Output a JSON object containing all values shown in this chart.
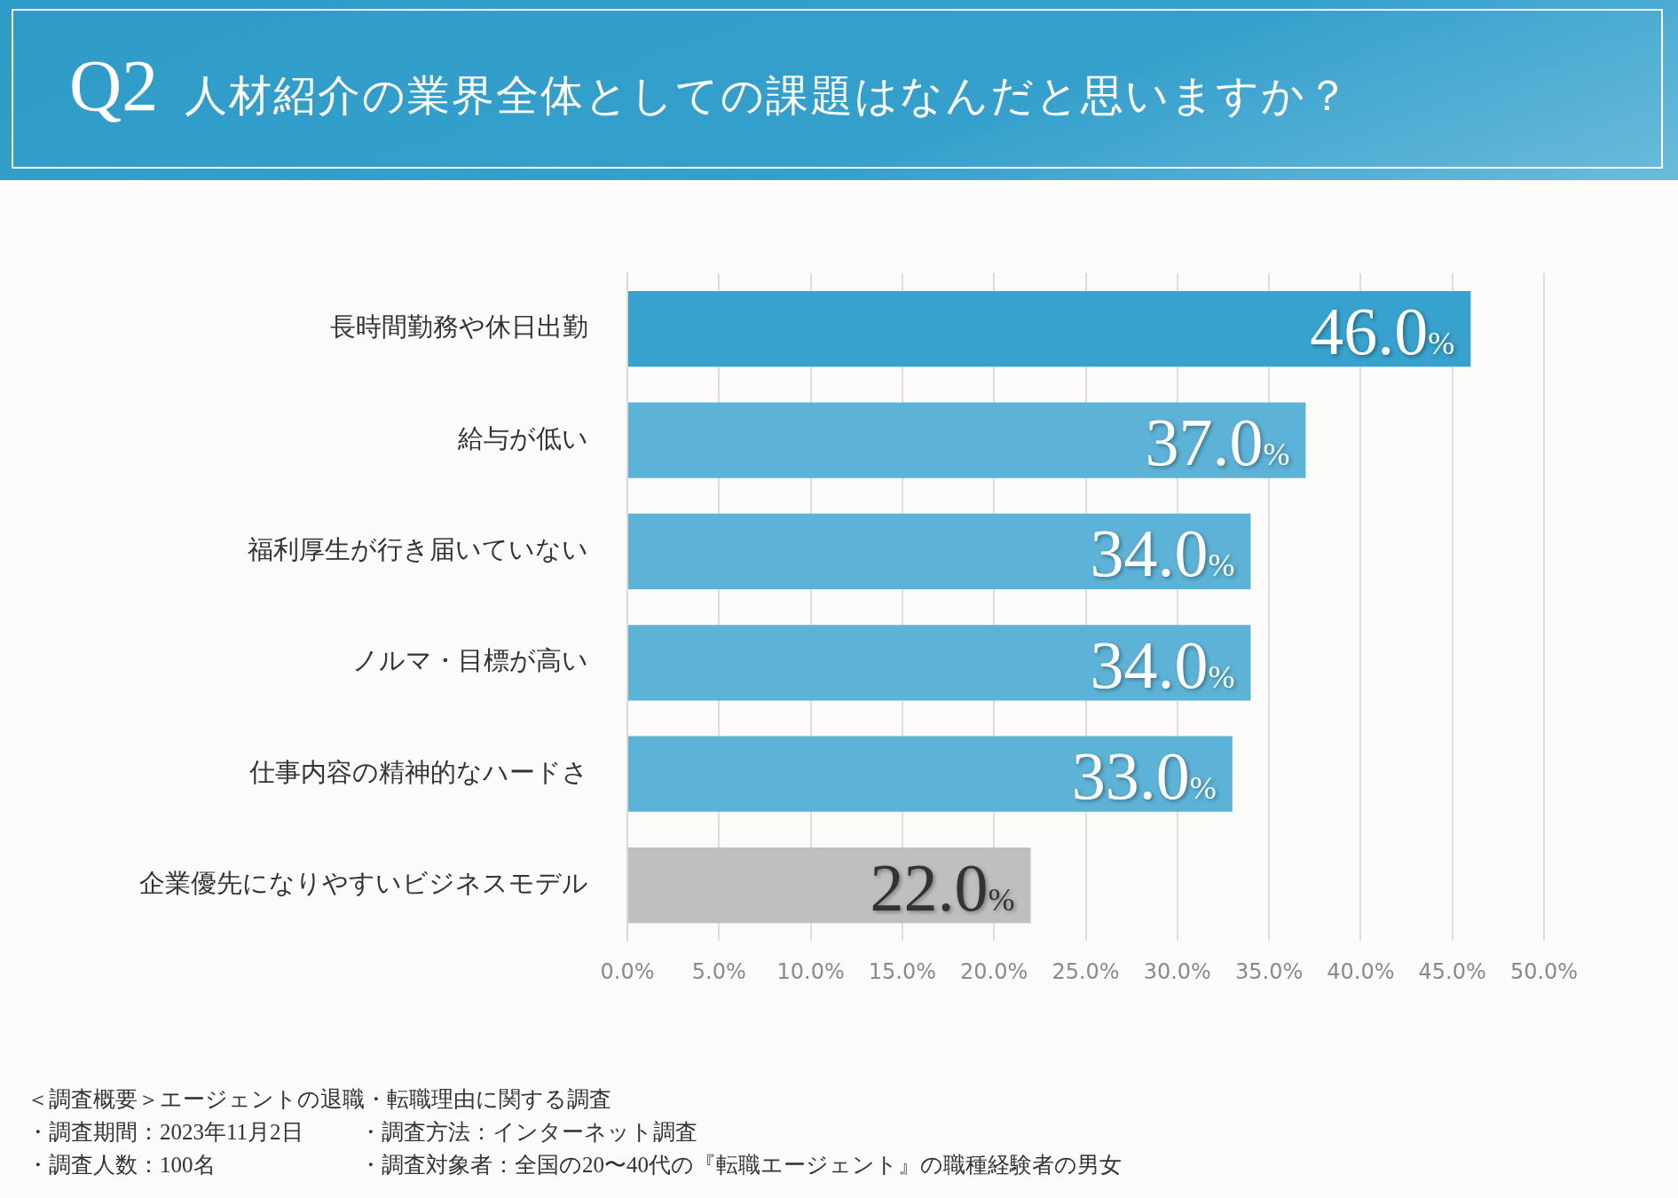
{
  "chart_data": {
    "type": "bar",
    "orientation": "horizontal",
    "title": "Q2",
    "subtitle": "人材紹介の業界全体としての課題はなんだと思いますか？",
    "categories": [
      "長時間勤務や休日出勤",
      "給与が低い",
      "福利厚生が行き届いていない",
      "ノルマ・目標が高い",
      "仕事内容の精神的なハードさ",
      "企業優先になりやすいビジネスモデル"
    ],
    "values": [
      46,
      37,
      34,
      34,
      33,
      22
    ],
    "colors": [
      "#36a2cd",
      "#5cb3d7",
      "#5cb3d7",
      "#5cb3d7",
      "#5cb3d7",
      "#bfbfbf"
    ],
    "value_labels": [
      "46.0%",
      "37.0%",
      "34.0%",
      "34.0%",
      "33.0%",
      "22.0%"
    ],
    "xlim": [
      0,
      50
    ],
    "xticks": [
      {
        "value": 0,
        "label": "0.0%"
      },
      {
        "value": 5,
        "label": "5.0%"
      },
      {
        "value": 10,
        "label": "10.0%"
      },
      {
        "value": 15,
        "label": "15.0%"
      },
      {
        "value": 20,
        "label": "20.0%"
      },
      {
        "value": 25,
        "label": "25.0%"
      },
      {
        "value": 30,
        "label": "30.0%"
      },
      {
        "value": 35,
        "label": "35.0%"
      },
      {
        "value": 40,
        "label": "40.0%"
      },
      {
        "value": 45,
        "label": "45.0%"
      },
      {
        "value": 50,
        "label": "50.0%"
      }
    ],
    "grid": "x",
    "legend": false,
    "annotations": [
      "＜調査概要＞エージェントの退職・転職理由に関する調査",
      "・調査期間：2023年11月2日",
      "・調査方法：インターネット調査",
      "・調査人数：100名",
      "・調査対象者：全国の20〜40代の『転職エージェント』の職種経験者の男女"
    ]
  }
}
